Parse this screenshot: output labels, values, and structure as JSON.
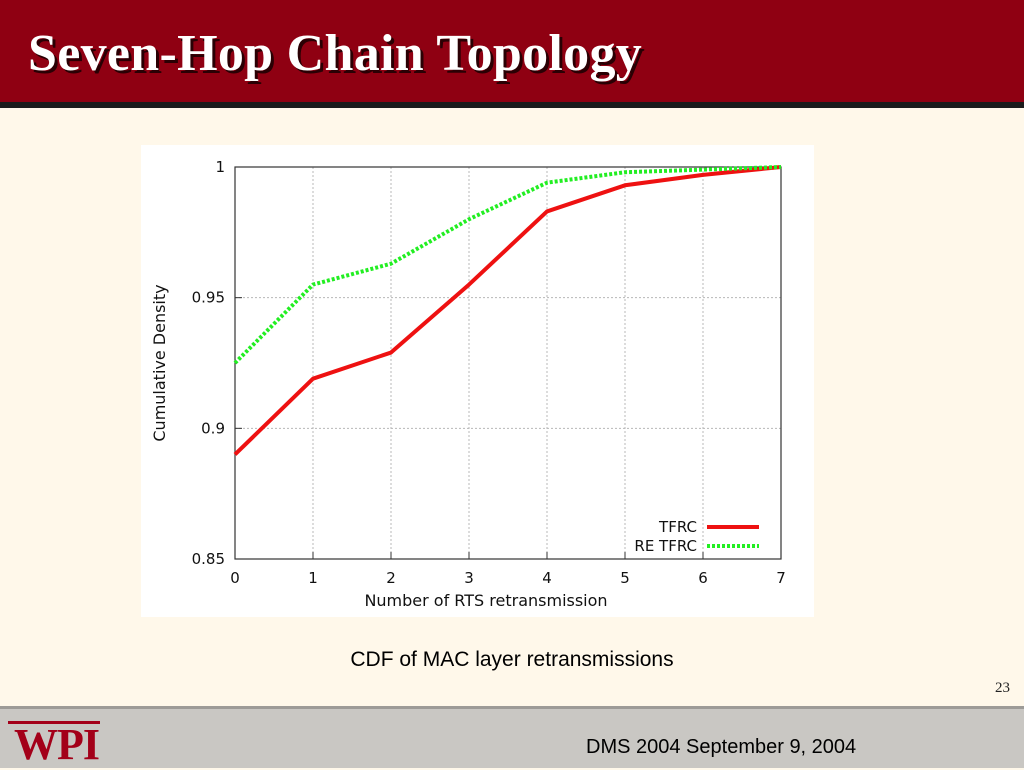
{
  "slide": {
    "title": "Seven-Hop Chain Topology",
    "caption": "CDF of MAC layer retransmissions",
    "page_number": "23",
    "footer_text": "DMS 2004 September 9, 2004",
    "logo_text": "WPI"
  },
  "colors": {
    "header": "#8f0012",
    "background": "#fff8ea",
    "tfrc": "#ee1111",
    "re_tfrc": "#22ee22"
  },
  "chart_data": {
    "type": "line",
    "title": "",
    "xlabel": "Number of RTS retransmission",
    "ylabel": "Cumulative Density",
    "x": [
      0,
      1,
      2,
      3,
      4,
      5,
      6,
      7
    ],
    "xlim": [
      0,
      7
    ],
    "ylim": [
      0.85,
      1
    ],
    "x_ticks": [
      "0",
      "1",
      "2",
      "3",
      "4",
      "5",
      "6",
      "7"
    ],
    "y_ticks": [
      "0.85",
      "0.9",
      "0.95",
      "1"
    ],
    "y_tick_values": [
      0.85,
      0.9,
      0.95,
      1
    ],
    "grid": true,
    "legend_position": "bottom-right",
    "series": [
      {
        "name": "TFRC",
        "values": [
          0.89,
          0.919,
          0.929,
          0.955,
          0.983,
          0.993,
          0.997,
          1.0
        ],
        "color": "#ee1111",
        "style": "solid"
      },
      {
        "name": "RE TFRC",
        "values": [
          0.925,
          0.955,
          0.963,
          0.98,
          0.994,
          0.998,
          0.999,
          1.0
        ],
        "color": "#22ee22",
        "style": "dotted"
      }
    ]
  }
}
